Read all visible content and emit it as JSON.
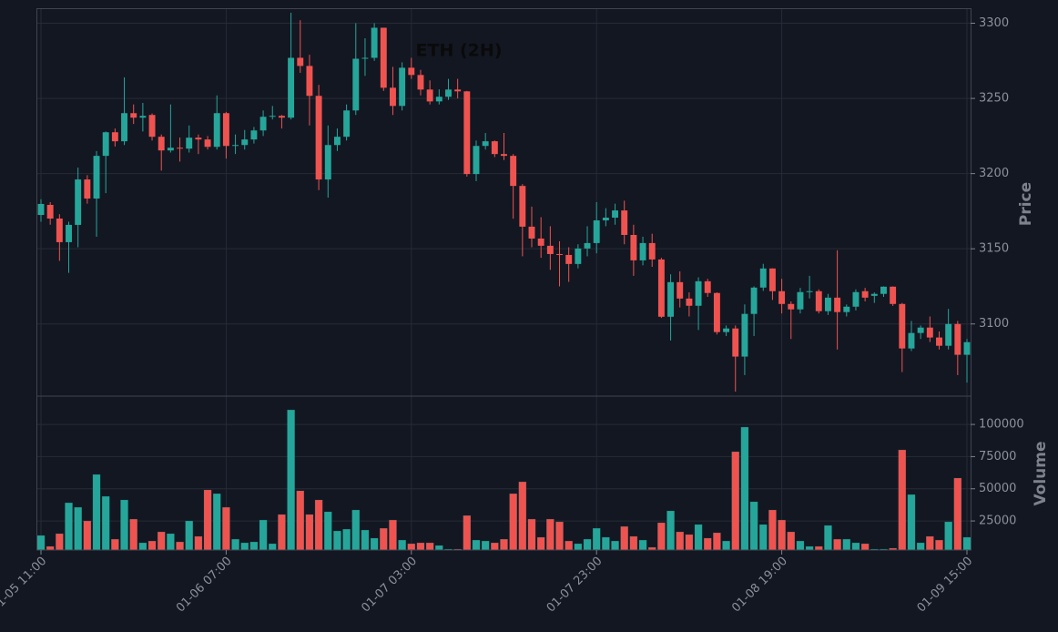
{
  "chart_data": {
    "type": "candlestick",
    "title": "ETH (2H)",
    "y_label": "Price",
    "volume_label": "Volume",
    "categories": [
      "01-05 11:00",
      null,
      null,
      null,
      null,
      null,
      null,
      null,
      null,
      null,
      null,
      null,
      null,
      null,
      null,
      null,
      null,
      null,
      null,
      null,
      "01-06 07:00",
      null,
      null,
      null,
      null,
      null,
      null,
      null,
      null,
      null,
      null,
      null,
      null,
      null,
      null,
      null,
      null,
      null,
      null,
      null,
      "01-07 03:00",
      null,
      null,
      null,
      null,
      null,
      null,
      null,
      null,
      null,
      null,
      null,
      null,
      null,
      null,
      null,
      null,
      null,
      null,
      null,
      "01-07 23:00",
      null,
      null,
      null,
      null,
      null,
      null,
      null,
      null,
      null,
      null,
      null,
      null,
      null,
      null,
      null,
      null,
      null,
      null,
      null,
      "01-08 19:00",
      null,
      null,
      null,
      null,
      null,
      null,
      null,
      null,
      null,
      null,
      null,
      null,
      null,
      null,
      null,
      null,
      null,
      null,
      null,
      "01-09 15:00"
    ],
    "open": [
      3172.5,
      3179.2,
      3170.1,
      3154.4,
      3165.9,
      3196.1,
      3183.4,
      3211.8,
      3227.5,
      3221.5,
      3240.2,
      3237.2,
      3239.0,
      3224.5,
      3215.4,
      3217.2,
      3216.6,
      3223.9,
      3222.7,
      3217.8,
      3240.2,
      3218.4,
      3219.0,
      3222.7,
      3228.7,
      3237.8,
      3238.4,
      3237.2,
      3277.0,
      3271.6,
      3251.7,
      3196.1,
      3219.0,
      3224.5,
      3242.0,
      3276.4,
      3277.0,
      3297.0,
      3257.1,
      3245.0,
      3270.4,
      3265.6,
      3255.9,
      3248.0,
      3251.1,
      3255.9,
      3254.7,
      3199.7,
      3218.4,
      3221.5,
      3213.0,
      3211.8,
      3191.8,
      3164.7,
      3156.8,
      3152.0,
      3146.5,
      3145.9,
      3139.9,
      3150.2,
      3153.8,
      3168.9,
      3170.7,
      3175.5,
      3159.2,
      3142.3,
      3153.8,
      3142.9,
      3104.8,
      3127.8,
      3116.9,
      3112.1,
      3128.4,
      3120.6,
      3094.6,
      3097.0,
      3078.3,
      3106.7,
      3124.2,
      3136.9,
      3121.8,
      3113.3,
      3109.7,
      3121.2,
      3121.8,
      3108.5,
      3117.5,
      3107.9,
      3111.5,
      3121.8,
      3118.7,
      3120.0,
      3124.8,
      3113.3,
      3083.7,
      3094.0,
      3097.6,
      3091.0,
      3085.5,
      3100.0,
      3079.5
    ],
    "high": [
      3183,
      3181,
      3173,
      3168,
      3204,
      3199,
      3215,
      3228,
      3230,
      3264,
      3246,
      3247,
      3240,
      3226,
      3246,
      3224,
      3232,
      3226,
      3225,
      3252,
      3241,
      3226,
      3229,
      3231,
      3242,
      3245,
      3239,
      3307,
      3302,
      3279,
      3259,
      3232,
      3230,
      3246,
      3300,
      3290,
      3300,
      3297,
      3271,
      3274,
      3277,
      3269,
      3262,
      3256,
      3263,
      3263,
      3255,
      3222,
      3227,
      3222,
      3227,
      3213,
      3193,
      3178,
      3171,
      3165,
      3155,
      3151,
      3153,
      3165,
      3181,
      3177,
      3180,
      3182,
      3166,
      3158,
      3160,
      3144,
      3133,
      3135,
      3121,
      3131,
      3130,
      3121,
      3099,
      3099,
      3113,
      3125,
      3140,
      3137,
      3130,
      3115,
      3124,
      3132,
      3123,
      3120,
      3149,
      3113,
      3123,
      3124,
      3121,
      3125,
      3125,
      3114,
      3102,
      3099,
      3105,
      3095,
      3110,
      3102,
      3090
    ],
    "low": [
      3168,
      3166,
      3142,
      3134,
      3151,
      3180,
      3158,
      3187,
      3218,
      3219,
      3233,
      3228,
      3222,
      3202,
      3214,
      3208,
      3214,
      3213,
      3216,
      3216,
      3210,
      3213,
      3216,
      3220,
      3225,
      3236,
      3230,
      3236,
      3267,
      3232,
      3189,
      3184,
      3215,
      3222,
      3239,
      3265,
      3275,
      3255,
      3239,
      3242,
      3263,
      3252,
      3246,
      3246,
      3249,
      3250,
      3198,
      3195,
      3216,
      3211,
      3209,
      3170,
      3145,
      3151,
      3144,
      3136,
      3125,
      3128,
      3137,
      3145,
      3147,
      3165,
      3166,
      3153,
      3132,
      3139,
      3138,
      3104,
      3089,
      3111,
      3105,
      3096,
      3118,
      3093,
      3092,
      3055,
      3066,
      3092,
      3122,
      3116,
      3107,
      3090,
      3107,
      3117,
      3107,
      3106,
      3083,
      3105,
      3109,
      3115,
      3114,
      3118,
      3112,
      3068,
      3082,
      3090,
      3088,
      3083,
      3083,
      3066,
      3061
    ],
    "close": [
      3179.8,
      3170.1,
      3154.4,
      3165.9,
      3196.1,
      3183.4,
      3211.8,
      3227.5,
      3221.5,
      3240.2,
      3237.2,
      3238.4,
      3224.5,
      3215.4,
      3217.2,
      3216.6,
      3223.9,
      3222.7,
      3217.8,
      3240.2,
      3218.4,
      3219.0,
      3222.7,
      3228.7,
      3237.8,
      3238.4,
      3237.2,
      3277.0,
      3271.6,
      3251.7,
      3196.1,
      3219.0,
      3224.5,
      3242.0,
      3276.4,
      3277.0,
      3297.0,
      3257.1,
      3245.0,
      3270.4,
      3265.6,
      3255.9,
      3248.0,
      3251.1,
      3255.9,
      3254.7,
      3199.7,
      3218.4,
      3221.5,
      3213.0,
      3211.8,
      3191.8,
      3164.7,
      3156.8,
      3152.0,
      3146.5,
      3145.9,
      3139.9,
      3150.2,
      3153.8,
      3168.9,
      3170.7,
      3175.5,
      3159.2,
      3142.3,
      3153.8,
      3142.9,
      3104.8,
      3127.8,
      3116.9,
      3112.1,
      3128.4,
      3120.6,
      3094.6,
      3097.0,
      3078.3,
      3106.7,
      3124.2,
      3136.9,
      3121.8,
      3113.3,
      3109.7,
      3121.2,
      3121.8,
      3108.5,
      3117.5,
      3107.9,
      3111.5,
      3121.2,
      3117.5,
      3120.0,
      3124.8,
      3113.3,
      3083.7,
      3094.0,
      3097.6,
      3091.0,
      3085.5,
      3100.0,
      3079.5,
      3087.9
    ],
    "volume": [
      13700,
      5200,
      15100,
      39100,
      35600,
      25000,
      61100,
      44100,
      10800,
      41300,
      26400,
      8000,
      9400,
      16500,
      15100,
      8700,
      25000,
      13000,
      49100,
      46200,
      35600,
      10800,
      8000,
      8700,
      25700,
      7300,
      30000,
      111300,
      48400,
      30000,
      41300,
      32100,
      17200,
      18600,
      33500,
      17900,
      11600,
      19300,
      25700,
      10100,
      7300,
      8000,
      8000,
      5900,
      3100,
      3100,
      29200,
      10100,
      9400,
      8000,
      10800,
      46200,
      55400,
      26400,
      12300,
      26400,
      24300,
      9400,
      7300,
      10800,
      19300,
      12300,
      9400,
      20700,
      13000,
      10100,
      4500,
      23600,
      32800,
      16500,
      14400,
      22200,
      11600,
      15800,
      9400,
      78800,
      97900,
      39900,
      22200,
      33500,
      25700,
      16500,
      9400,
      5200,
      5200,
      21500,
      10800,
      10800,
      8000,
      7300,
      3100,
      3100,
      3800,
      80200,
      45500,
      8000,
      13000,
      10100,
      24300,
      58300,
      12300
    ],
    "ylim": [
      3052,
      3310
    ],
    "yticks": [
      3100,
      3150,
      3200,
      3250,
      3300
    ],
    "volume_ylim": [
      2400,
      122000
    ],
    "volume_yticks": [
      25000,
      50000,
      75000,
      100000
    ],
    "up_color": "#26a69a",
    "down_color": "#ef5350",
    "grid": true
  }
}
